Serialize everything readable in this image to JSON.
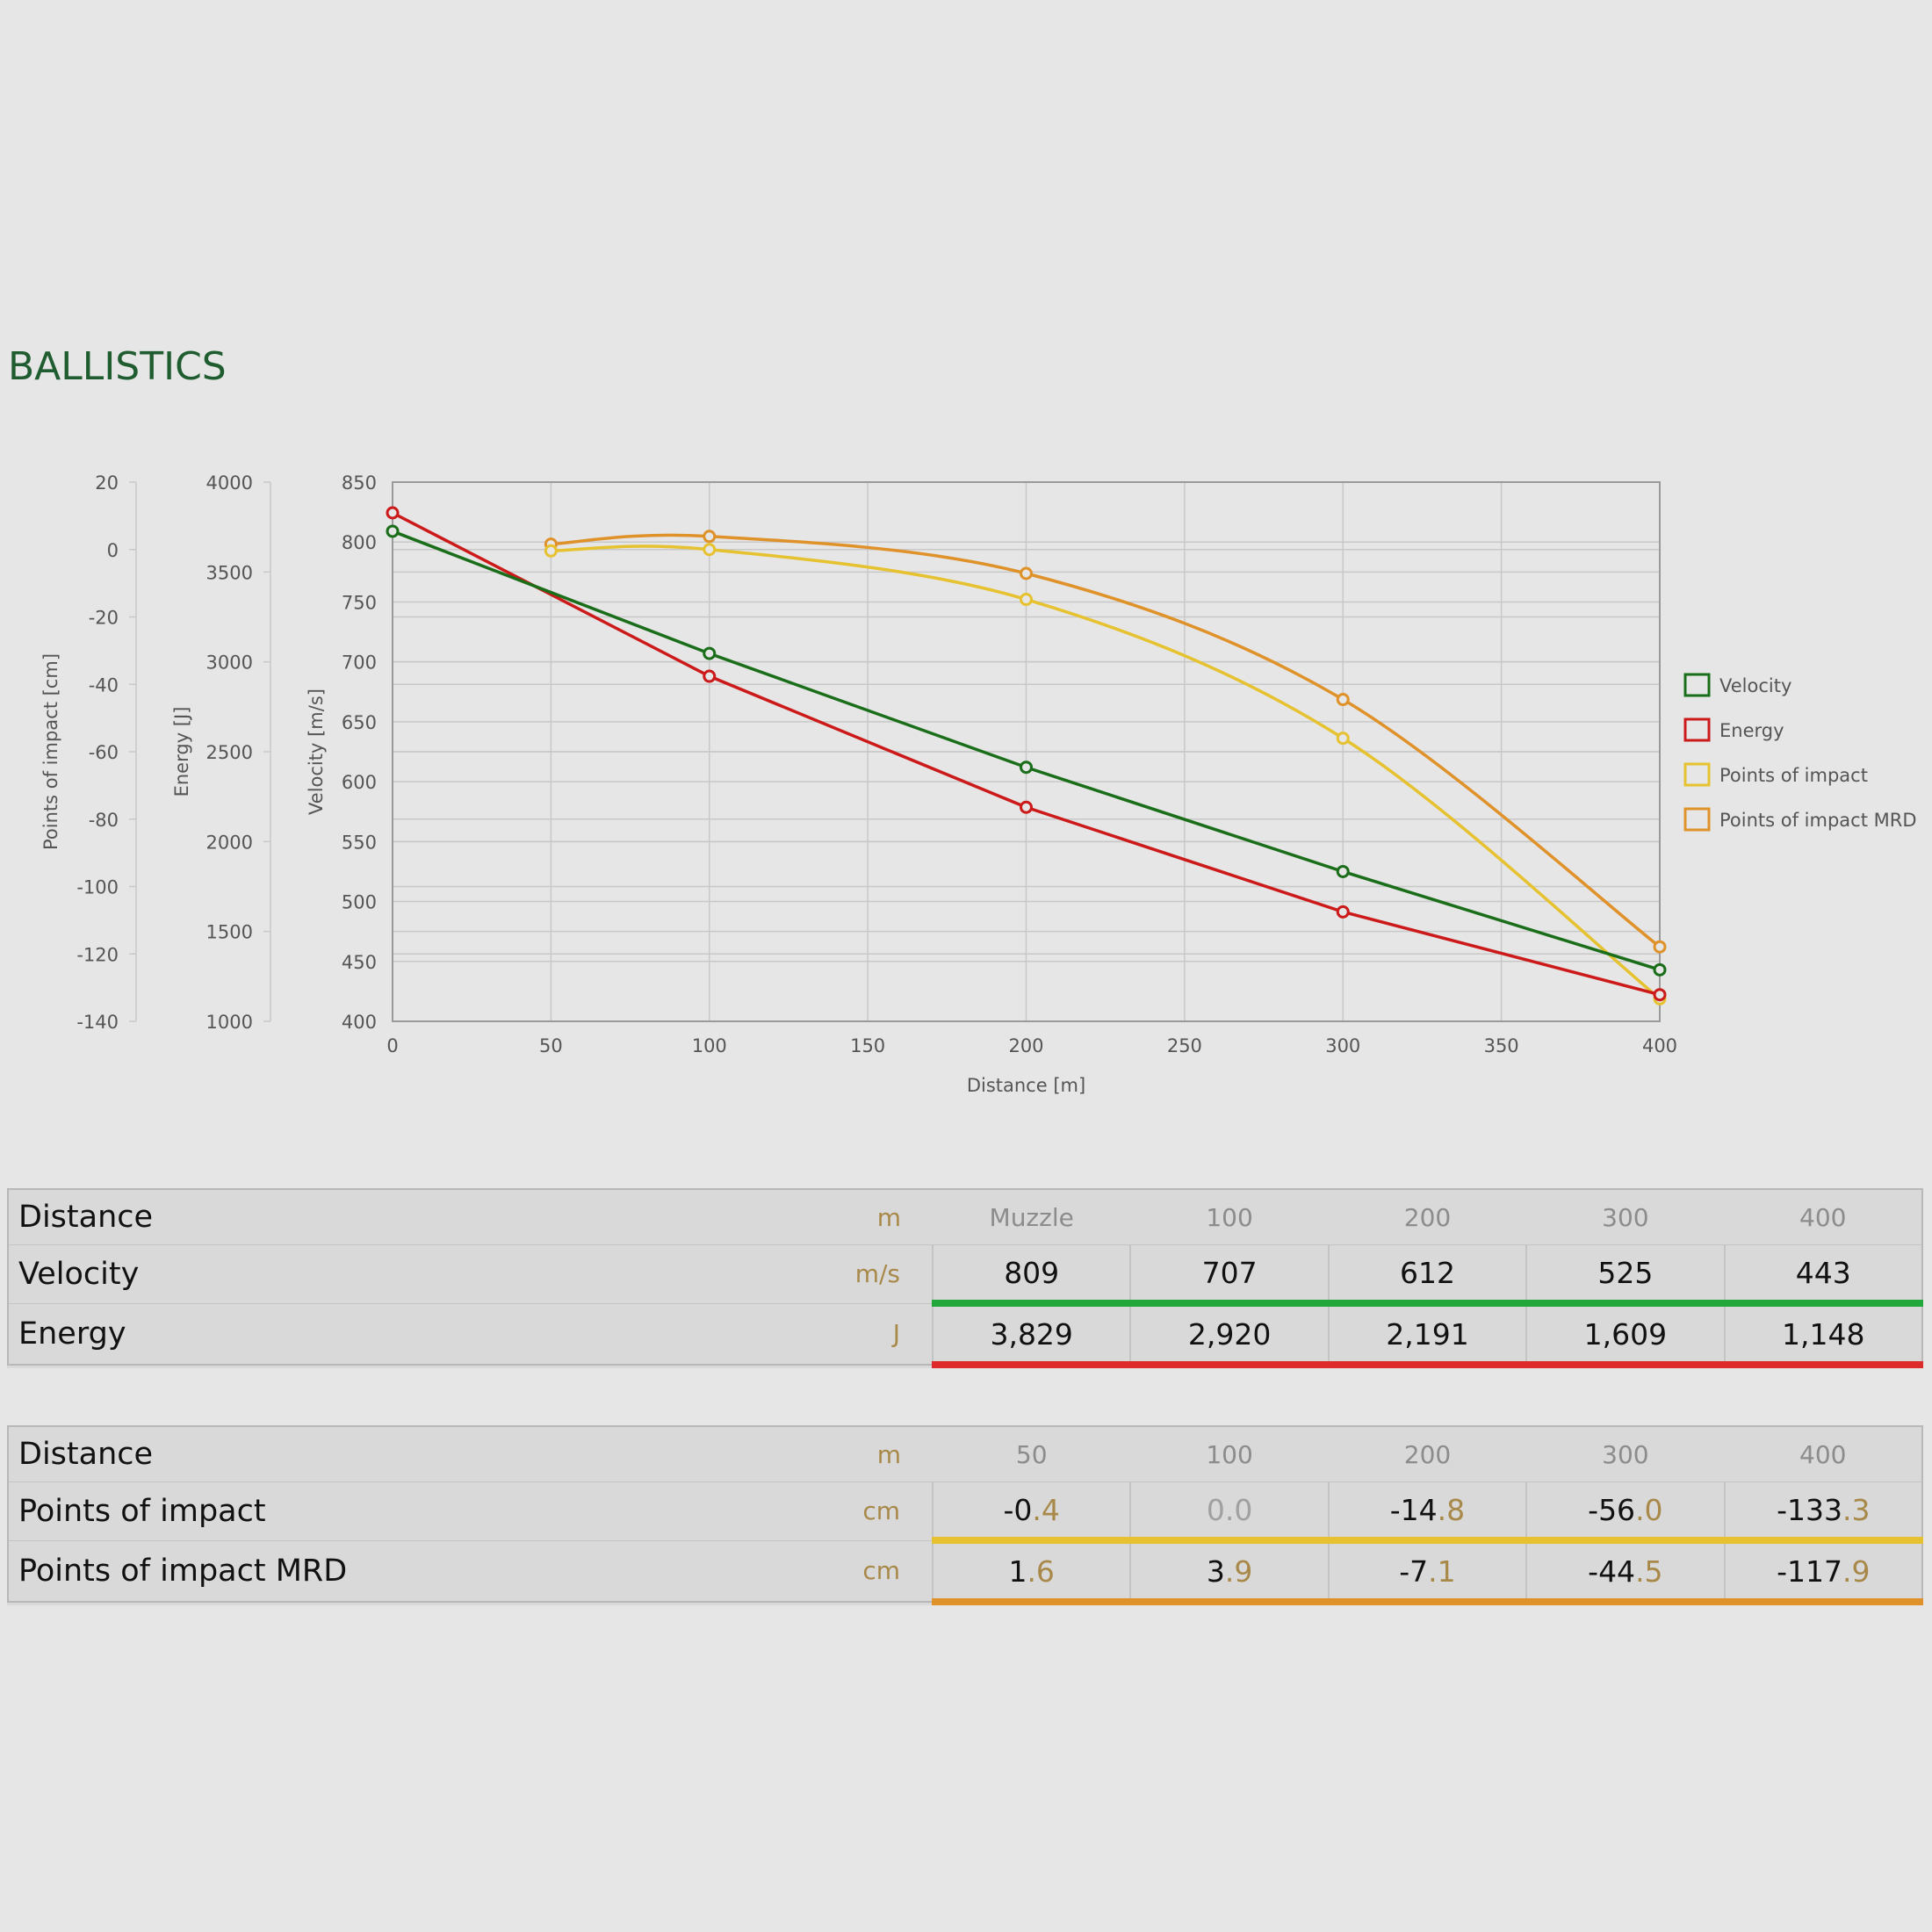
{
  "page_title": "BALLISTICS",
  "colors": {
    "velocity": "#1a6e1a",
    "energy": "#cc1a1a",
    "poi": "#e6c230",
    "poi_mrd": "#e0922a",
    "title": "#1f5c2f",
    "unit": "#a8894a"
  },
  "chart_data": {
    "type": "line",
    "xlabel": "Distance [m]",
    "x_ticks": [
      0,
      50,
      100,
      150,
      200,
      250,
      300,
      350,
      400
    ],
    "xlim": [
      0,
      400
    ],
    "axes": {
      "velocity": {
        "label": "Velocity [m/s]",
        "ylim": [
          400,
          850
        ],
        "ticks": [
          400,
          450,
          500,
          550,
          600,
          650,
          700,
          750,
          800,
          850
        ]
      },
      "energy": {
        "label": "Energy [J]",
        "ylim": [
          1000,
          4000
        ],
        "ticks": [
          1000,
          1500,
          2000,
          2500,
          3000,
          3500,
          4000
        ]
      },
      "poi": {
        "label": "Points of impact [cm]",
        "ylim": [
          -140,
          20
        ],
        "ticks": [
          -140,
          -120,
          -100,
          -80,
          -60,
          -40,
          -20,
          0,
          20
        ]
      }
    },
    "grid": true,
    "legend_position": "right",
    "series": [
      {
        "name": "Velocity",
        "axis": "velocity",
        "color": "#1a6e1a",
        "x": [
          0,
          100,
          200,
          300,
          400
        ],
        "y": [
          809,
          707,
          612,
          525,
          443
        ]
      },
      {
        "name": "Energy",
        "axis": "energy",
        "color": "#cc1a1a",
        "x": [
          0,
          100,
          200,
          300,
          400
        ],
        "y": [
          3829,
          2920,
          2191,
          1609,
          1148
        ]
      },
      {
        "name": "Points of impact",
        "axis": "poi",
        "color": "#e6c230",
        "x": [
          50,
          100,
          200,
          300,
          400
        ],
        "y": [
          -0.4,
          0.0,
          -14.8,
          -56.0,
          -133.3
        ]
      },
      {
        "name": "Points of impact MRD",
        "axis": "poi",
        "color": "#e0922a",
        "x": [
          50,
          100,
          200,
          300,
          400
        ],
        "y": [
          1.6,
          3.9,
          -7.1,
          -44.5,
          -117.9
        ]
      }
    ]
  },
  "table1": {
    "header": {
      "label": "Distance",
      "unit": "m",
      "values": [
        "Muzzle",
        "100",
        "200",
        "300",
        "400"
      ]
    },
    "rows": [
      {
        "label": "Velocity",
        "unit": "m/s",
        "values": [
          "809",
          "707",
          "612",
          "525",
          "443"
        ]
      },
      {
        "label": "Energy",
        "unit": "J",
        "values": [
          "3,829",
          "2,920",
          "2,191",
          "1,609",
          "1,148"
        ]
      }
    ]
  },
  "table2": {
    "header": {
      "label": "Distance",
      "unit": "m",
      "values": [
        "50",
        "100",
        "200",
        "300",
        "400"
      ]
    },
    "rows": [
      {
        "label": "Points of impact",
        "unit": "cm",
        "values": [
          {
            "int": "-0",
            "frac": ".4"
          },
          {
            "int": "0.0",
            "frac": ""
          },
          {
            "int": "-14",
            "frac": ".8"
          },
          {
            "int": "-56",
            "frac": ".0"
          },
          {
            "int": "-133",
            "frac": ".3"
          }
        ]
      },
      {
        "label": "Points of impact MRD",
        "unit": "cm",
        "values": [
          {
            "int": "1",
            "frac": ".6"
          },
          {
            "int": "3",
            "frac": ".9"
          },
          {
            "int": "-7",
            "frac": ".1"
          },
          {
            "int": "-44",
            "frac": ".5"
          },
          {
            "int": "-117",
            "frac": ".9"
          }
        ]
      }
    ]
  }
}
